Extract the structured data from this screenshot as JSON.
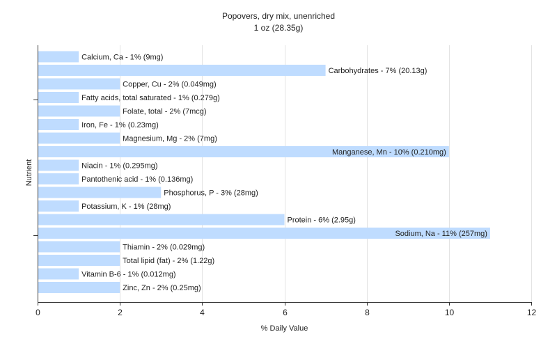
{
  "chart_data": {
    "type": "bar",
    "orientation": "horizontal",
    "title": "Popovers, dry mix, unenriched",
    "subtitle": "1 oz (28.35g)",
    "xlabel": "% Daily Value",
    "ylabel": "Nutrient",
    "xlim": [
      0,
      12
    ],
    "xticks": [
      0,
      2,
      4,
      6,
      8,
      10,
      12
    ],
    "grid": true,
    "bar_color": "#bfdcff",
    "categories": [
      "Calcium, Ca",
      "Carbohydrates",
      "Copper, Cu",
      "Fatty acids, total saturated",
      "Folate, total",
      "Iron, Fe",
      "Magnesium, Mg",
      "Manganese, Mn",
      "Niacin",
      "Pantothenic acid",
      "Phosphorus, P",
      "Potassium, K",
      "Protein",
      "Sodium, Na",
      "Thiamin",
      "Total lipid (fat)",
      "Vitamin B-6",
      "Zinc, Zn"
    ],
    "values": [
      1,
      7,
      2,
      1,
      2,
      1,
      2,
      10,
      1,
      1,
      3,
      1,
      6,
      11,
      2,
      2,
      1,
      2
    ],
    "labels": [
      "Calcium, Ca - 1% (9mg)",
      "Carbohydrates - 7% (20.13g)",
      "Copper, Cu - 2% (0.049mg)",
      "Fatty acids, total saturated - 1% (0.279g)",
      "Folate, total - 2% (7mcg)",
      "Iron, Fe - 1% (0.23mg)",
      "Magnesium, Mg - 2% (7mg)",
      "Manganese, Mn - 10% (0.210mg)",
      "Niacin - 1% (0.295mg)",
      "Pantothenic acid - 1% (0.136mg)",
      "Phosphorus, P - 3% (28mg)",
      "Potassium, K - 1% (28mg)",
      "Protein - 6% (2.95g)",
      "Sodium, Na - 11% (257mg)",
      "Thiamin - 2% (0.029mg)",
      "Total lipid (fat) - 2% (1.22g)",
      "Vitamin B-6 - 1% (0.012mg)",
      "Zinc, Zn - 2% (0.25mg)"
    ]
  }
}
